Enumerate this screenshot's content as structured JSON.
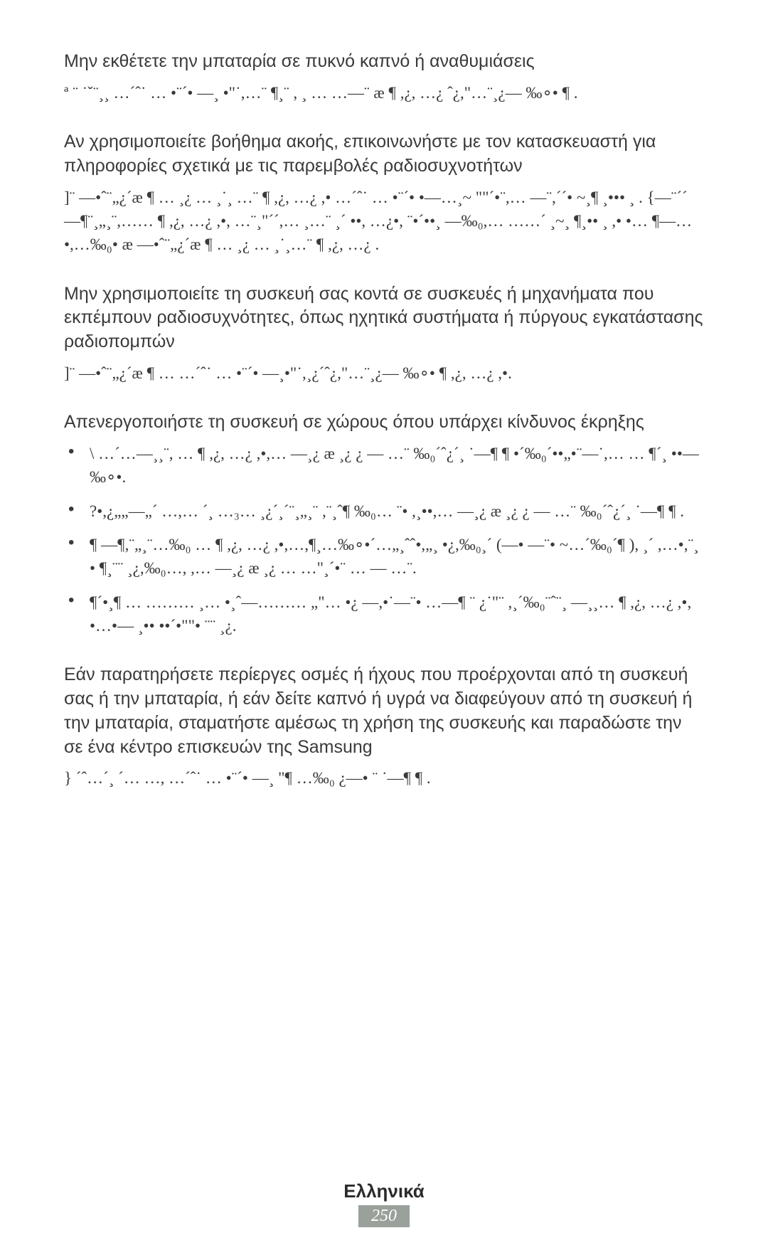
{
  "page": {
    "language_label": "Ελληνικά",
    "page_number": "250",
    "background_color": "#ffffff",
    "text_color": "#3a3a3a",
    "footer_bg": "#9aa09a"
  },
  "sections": [
    {
      "heading": "Μην εκθέτετε την μπαταρία σε πυκνό καπνό ή αναθυμιάσεις",
      "body": "ª ¨ ˙ˇ¨¸¸ …´ˆ˙ … •¨´• —¸ •\"˙,…¨ ¶¸¨ , ¸ …  …—¨ æ ¶ ,¿, …¿ ˆ¿,\"…¨¸¿— ‰∘• ¶ ."
    },
    {
      "heading": "Αν χρησιμοποιείτε βοήθημα ακοής, επικοινωνήστε με τον κατασκευαστή για πληροφορίες σχετικά με τις παρεμβολές ραδιοσυχνοτήτων",
      "body": "]¨ —•ˆ¨„¿´æ ¶ … ¸¿ … ¸˙¸ …¨ ¶ ,¿, …¿ ,• …´ˆ˙ … •¨´• •—…¸~ \"\"´•¨,… —¨,´´• ~¸¶ ¸••• ¸ . {—¨´´ —¶¨¸„¸¨,…… ¶ ,¿, …¿ ,•, …¨¸\"´´,… ¸…¨ ¸´ ••, …¿•, ¨•´••¸ —‰₀,… ……´ ¸~¸ ¶¸•• ¸ ,• •… ¶—…•,…‰₀• æ —•ˆ¨„¿´æ ¶ … ¸¿ … ¸˙¸…¨ ¶ ,¿, …¿ ."
    },
    {
      "heading": "Μην χρησιμοποιείτε τη συσκευή σας κοντά σε συσκευές ή μηχανήματα που εκπέμπουν ραδιοσυχνότητες, όπως ηχητικά συστήματα ή πύργους εγκατάστασης ραδιοπομπών",
      "body": "]¨ —•ˆ¨„¿´æ ¶ … …´ˆ˙ … •¨´• —¸•\"˙,¸¿´ˆ¿,\"…¨¸¿— ‰∘• ¶ ,¿, …¿ ,•."
    },
    {
      "heading": "Απενεργοποιήστε τη συσκευή σε χώρους όπου υπάρχει κίνδυνος έκρηξης",
      "bullets": [
        "\\ …´…—¸¸¨, … ¶ ,¿, …¿ ,•,… —¸¿ æ ¸¿ ¿ — …¨ ‰₀´ˆ¿´¸ ˙—¶ ¶ •´‰₀´••„•¨—˙,… … ¶´¸ ••—‰∘•.",
        "?•,¿„„—„´ …,… ´¸ …₃… ¸¿´¸´¨¸„¸¨ ,¨¸ˆ¶ ‰₀… ¨• ,¸••,… —¸¿ æ ¸¿ ¿ — …¨ ‰₀´ˆ¿´¸ ˙—¶ ¶ .",
        "¶ —¶,¨„¸¨…‰₀ … ¶ ,¿, …¿ ,•,…,¶¸…‰∘•´…„¸ˆˆ•,„¸ •¿,‰₀¸´ (—• —¨• ~…´‰₀´¶ ),  ¸´ ,…•,¨¸• ¶¸¨¨ ¸¿,‰₀…,  ,… —¸¿ æ ¸¿ … …\"¸´•¨ … — …¨.",
        "¶´•¸¶ … ……… ¸… •¸ˆ—……… „\"… •¿ —,•˙—¨• …—¶  ¨ ¿˙\"¨ ,¸´‰₀¨ˆ¨¸ —¸¸…  ¶ ,¿, …¿ ,•, •…•— ¸•• ••´•\"\"• ¨¨ ¸¿."
      ]
    },
    {
      "heading": "Εάν παρατηρήσετε περίεργες οσμές ή ήχους που προέρχονται από τη συσκευή σας ή την μπαταρία, ή εάν δείτε καπνό ή υγρά να διαφεύγουν από τη συσκευή ή την μπαταρία, σταματήστε αμέσως τη χρήση της συσκευής και παραδώστε την σε ένα κέντρο επισκευών της Samsung",
      "body": "} ´ˆ…´¸ ´… …, …´ˆ˙ … •¨´• —¸ \"¶ …‰₀  ¿—• ¨  ˙—¶ ¶ ."
    }
  ]
}
